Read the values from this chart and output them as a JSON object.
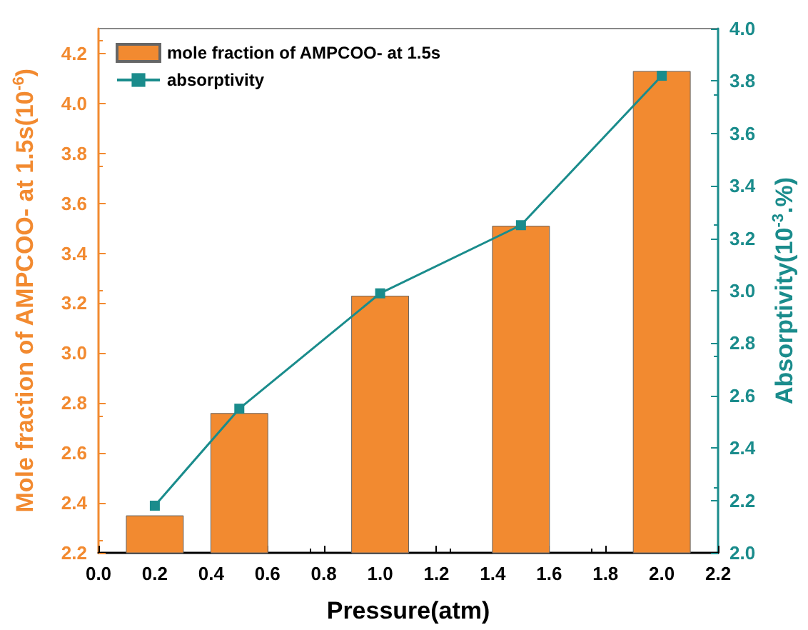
{
  "chart_data": {
    "type": "bar",
    "xlabel": "Pressure(atm)",
    "ylabel": "Mole fraction of AMPCOO- at 1.5s(10$^{-6}$)",
    "y2label": "Absorptivity(10$^{-3}$.%)",
    "x": [
      0.2,
      0.5,
      1.0,
      1.5,
      2.0
    ],
    "series": [
      {
        "name": "mole fraction of AMPCOO- at 1.5s",
        "color": "#f28a30",
        "values": [
          2.35,
          2.76,
          3.23,
          3.51,
          4.13
        ]
      },
      {
        "name": "absorptivity",
        "type": "line",
        "axis": "y2",
        "color": "#1a8c8c",
        "marker": "square",
        "values": [
          2.18,
          2.55,
          2.99,
          3.25,
          3.82
        ]
      }
    ],
    "xlim": [
      0.0,
      2.2
    ],
    "xticks": [
      {
        "value": 0,
        "label": "0.0"
      },
      0.2,
      0.4,
      0.6,
      0.8,
      {
        "value": 1,
        "label": "1.0"
      },
      1.2,
      1.4,
      1.6,
      1.8,
      {
        "value": 2,
        "label": "2.0"
      },
      2.2
    ],
    "ylim": [
      2.2,
      4.3
    ],
    "yticks": [
      2.2,
      2.4,
      2.6,
      2.8,
      {
        "value": 3,
        "label": "3.0"
      },
      3.2,
      3.4,
      3.6,
      3.8,
      {
        "value": 4,
        "label": "4.0"
      },
      4.2
    ],
    "y2lim": [
      2.0,
      4.0
    ],
    "y2ticks": [
      {
        "value": 2,
        "label": "2.0"
      },
      2.2,
      2.4,
      2.6,
      2.8,
      {
        "value": 3,
        "label": "3.0"
      },
      3.2,
      3.4,
      3.6,
      3.8,
      {
        "value": 4,
        "label": "4.0"
      }
    ],
    "grid": false,
    "legend": "top left"
  }
}
